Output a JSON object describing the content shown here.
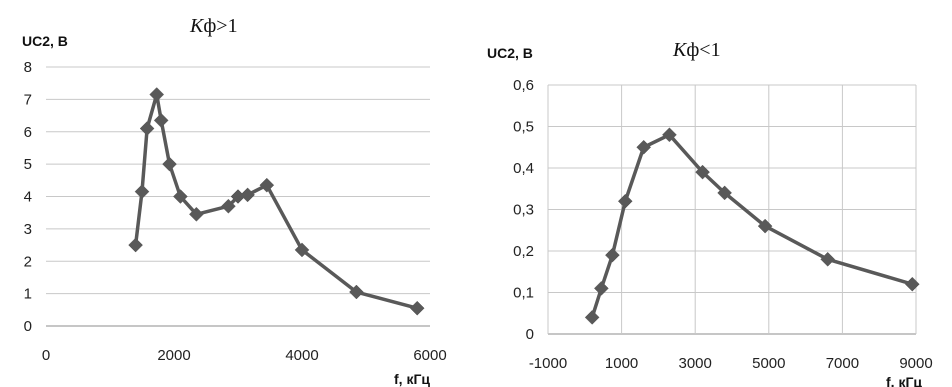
{
  "chart_data": [
    {
      "type": "line",
      "title": "Kф>1",
      "ylabel": "UC2, B",
      "xlabel": "f, кГц",
      "xlim": [
        0,
        6000
      ],
      "ylim": [
        0,
        8
      ],
      "x_ticks": [
        "0",
        "2000",
        "4000",
        "6000"
      ],
      "y_ticks": [
        "0",
        "1",
        "2",
        "3",
        "4",
        "5",
        "6",
        "7",
        "8"
      ],
      "grid": "horizontal",
      "color": "#595959",
      "series": [
        {
          "points": [
            [
              1400,
              2.5
            ],
            [
              1500,
              4.15
            ],
            [
              1580,
              6.1
            ],
            [
              1730,
              7.15
            ],
            [
              1800,
              6.35
            ],
            [
              1930,
              5.0
            ],
            [
              2100,
              4.0
            ],
            [
              2350,
              3.45
            ],
            [
              2850,
              3.7
            ],
            [
              3000,
              4.0
            ],
            [
              3150,
              4.05
            ],
            [
              3450,
              4.35
            ],
            [
              4000,
              2.35
            ],
            [
              4850,
              1.05
            ],
            [
              5800,
              0.55
            ]
          ]
        }
      ]
    },
    {
      "type": "line",
      "title": "Kф<1",
      "ylabel": "UC2, B",
      "xlabel": "f, кГц",
      "xlim": [
        -1000,
        9000
      ],
      "ylim": [
        0,
        0.6
      ],
      "x_ticks": [
        "-1000",
        "1000",
        "3000",
        "5000",
        "7000",
        "9000"
      ],
      "y_ticks": [
        "0",
        "0,1",
        "0,2",
        "0,3",
        "0,4",
        "0,5",
        "0,6"
      ],
      "grid": "horizontal and vertical",
      "color": "#595959",
      "series": [
        {
          "points": [
            [
              200,
              0.04
            ],
            [
              450,
              0.11
            ],
            [
              750,
              0.19
            ],
            [
              1100,
              0.32
            ],
            [
              1600,
              0.45
            ],
            [
              2300,
              0.48
            ],
            [
              3200,
              0.39
            ],
            [
              3800,
              0.34
            ],
            [
              4900,
              0.26
            ],
            [
              6600,
              0.18
            ],
            [
              8900,
              0.12
            ]
          ]
        }
      ]
    }
  ]
}
